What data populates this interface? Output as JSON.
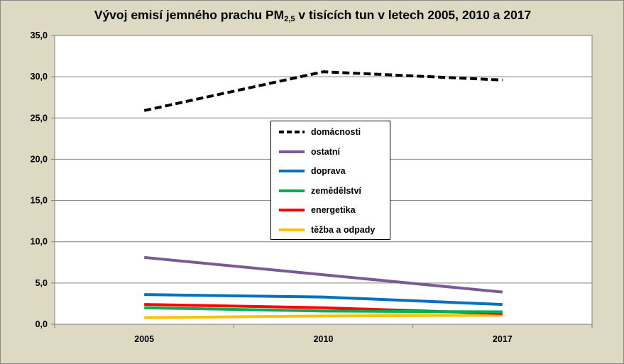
{
  "chart_data": {
    "type": "line",
    "title": {
      "main": "Vývoj emisí jemného prachu PM",
      "sub": "2,5",
      "rest": " v tisících tun v letech 2005, 2010 a 2017"
    },
    "categories": [
      "2005",
      "2010",
      "2017"
    ],
    "ylim": [
      0,
      35
    ],
    "yticks": [
      "0,0",
      "5,0",
      "10,0",
      "15,0",
      "20,0",
      "25,0",
      "30,0",
      "35,0"
    ],
    "grid": true,
    "legend_position": "center",
    "series": [
      {
        "name": "domácnosti",
        "values": [
          25.9,
          30.6,
          29.6
        ],
        "color": "#000000",
        "dash": true
      },
      {
        "name": "ostatní",
        "values": [
          8.1,
          6.0,
          3.9
        ],
        "color": "#7a5a96",
        "dash": false
      },
      {
        "name": "doprava",
        "values": [
          3.6,
          3.3,
          2.4
        ],
        "color": "#0070c0",
        "dash": false
      },
      {
        "name": "zemědělství",
        "values": [
          2.0,
          1.6,
          1.5
        ],
        "color": "#00b050",
        "dash": false
      },
      {
        "name": "energetika",
        "values": [
          2.4,
          2.0,
          1.3
        ],
        "color": "#ff0000",
        "dash": false
      },
      {
        "name": "těžba a odpady",
        "values": [
          0.8,
          1.0,
          1.1
        ],
        "color": "#ffc000",
        "dash": false
      }
    ]
  }
}
